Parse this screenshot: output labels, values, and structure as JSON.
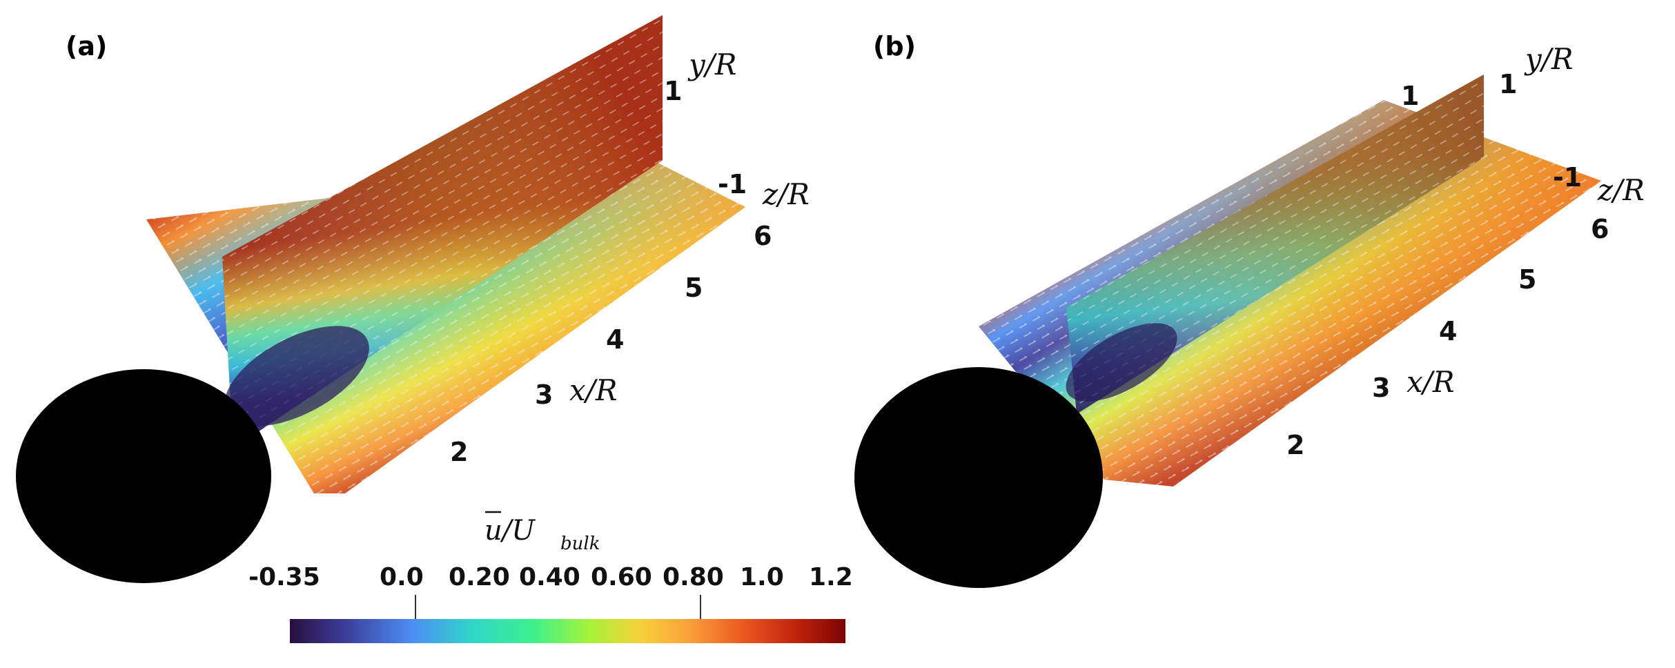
{
  "panels": [
    {
      "letter": "(a)",
      "axes": {
        "x_label": "x/R",
        "y_label": "y/R",
        "z_label": "z/R",
        "x_ticks": [
          "2",
          "3",
          "4",
          "5",
          "6"
        ],
        "y_ticks": [
          "1"
        ],
        "z_ticks": [
          "-1"
        ]
      }
    },
    {
      "letter": "(b)",
      "axes": {
        "x_label": "x/R",
        "y_label": "y/R",
        "z_label": "z/R",
        "x_ticks": [
          "2",
          "3",
          "4",
          "5",
          "6"
        ],
        "y_ticks": [
          "1",
          "1"
        ],
        "z_ticks": [
          "-1"
        ]
      }
    }
  ],
  "colorbar": {
    "title_main": "u/U",
    "title_sub": "bulk",
    "min": -0.35,
    "max": 1.2,
    "ticks": [
      "-0.35",
      "0.0",
      "0.20",
      "0.40",
      "0.60",
      "0.80",
      "1.0",
      "1.2"
    ],
    "colormap": [
      "#2a0f3e",
      "#3b3e9a",
      "#4d8ef5",
      "#2fd7c8",
      "#3ef18a",
      "#a7f239",
      "#f6d23a",
      "#f9a03a",
      "#ea5520",
      "#b8200c",
      "#7a0403"
    ]
  },
  "colors": {
    "sphere": "#000000",
    "vectors": "#e9e9e9"
  }
}
